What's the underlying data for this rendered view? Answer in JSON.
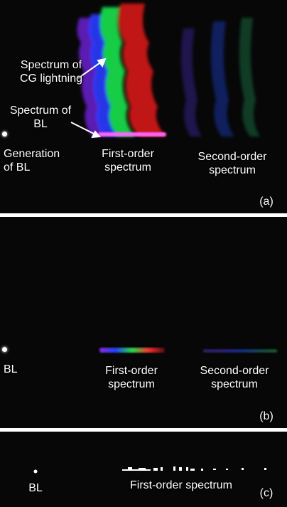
{
  "panel_a": {
    "label_spectrum_cg": "Spectrum of\nCG lightning",
    "label_spectrum_bl": "Spectrum of\nBL",
    "label_generation": "Generation\nof BL",
    "label_first_order": "First-order\nspectrum",
    "label_second_order": "Second-order\nspectrum",
    "panel_letter": "(a)"
  },
  "panel_b": {
    "label_bl": "BL",
    "label_first_order": "First-order\nspectrum",
    "label_second_order": "Second-order\nspectrum",
    "panel_letter": "(b)"
  },
  "panel_c": {
    "label_bl": "BL",
    "label_first_order": "First-order spectrum",
    "panel_letter": "(c)"
  },
  "colors": {
    "violet": "#8a2be2",
    "blue": "#2040ff",
    "green": "#20e040",
    "red": "#ff2020",
    "background": "#070707"
  }
}
